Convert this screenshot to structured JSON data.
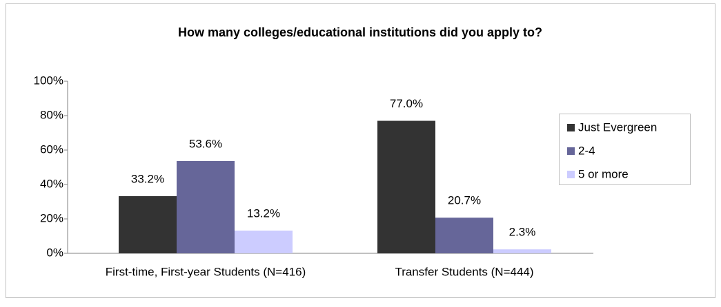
{
  "chart_data": {
    "type": "bar",
    "title": "How many colleges/educational institutions did you apply to?",
    "categories": [
      "First-time, First-year Students (N=416)",
      "Transfer Students (N=444)"
    ],
    "series": [
      {
        "name": "Just Evergreen",
        "color": "#333333",
        "values": [
          33.2,
          77.0
        ],
        "value_labels": [
          "33.2%",
          "77.0%"
        ]
      },
      {
        "name": "2-4",
        "color": "#666699",
        "values": [
          53.6,
          20.7
        ],
        "value_labels": [
          "53.6%",
          "20.7%"
        ]
      },
      {
        "name": "5 or more",
        "color": "#ccccff",
        "values": [
          13.2,
          2.3
        ],
        "value_labels": [
          "13.2%",
          "2.3%"
        ]
      }
    ],
    "ylim": [
      0,
      100
    ],
    "yticks": [
      {
        "value": 0,
        "label": "0%"
      },
      {
        "value": 20,
        "label": "20%"
      },
      {
        "value": 40,
        "label": "40%"
      },
      {
        "value": 60,
        "label": "60%"
      },
      {
        "value": 80,
        "label": "80%"
      },
      {
        "value": 100,
        "label": "100%"
      }
    ],
    "grid": false,
    "legend": "right"
  }
}
